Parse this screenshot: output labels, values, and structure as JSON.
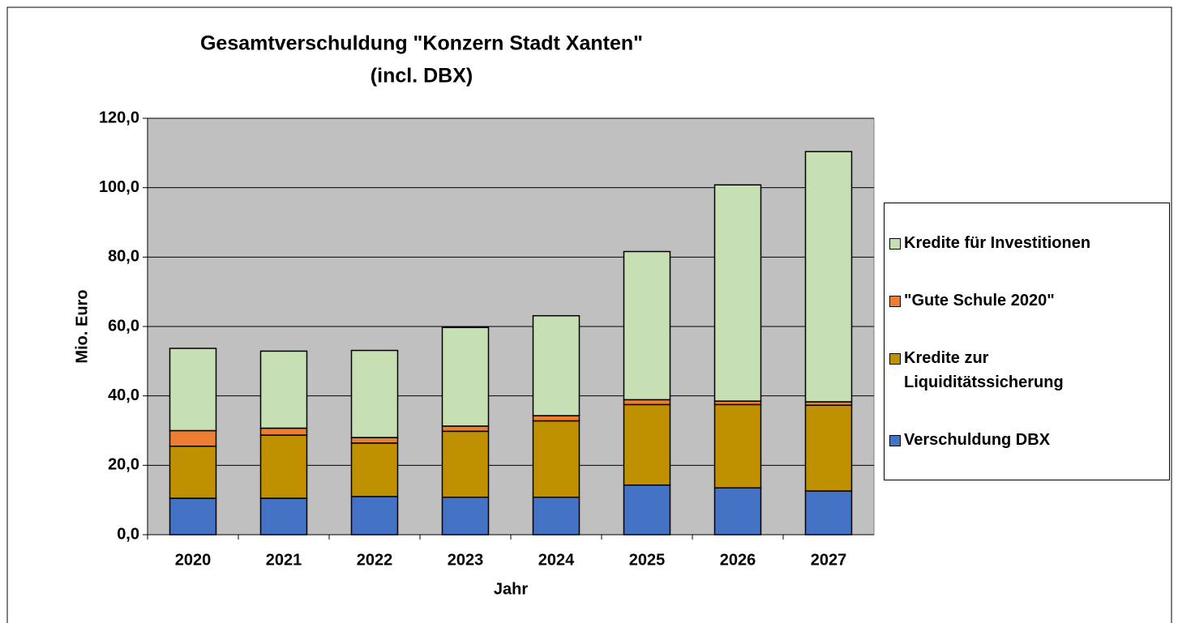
{
  "chart_data": {
    "type": "stacked_bar",
    "title": [
      "Gesamtverschuldung \"Konzern Stadt Xanten\"",
      "(incl. DBX)"
    ],
    "x_label": "Jahr",
    "y_label": "Mio. Euro",
    "categories": [
      "2020",
      "2021",
      "2022",
      "2023",
      "2024",
      "2025",
      "2026",
      "2027"
    ],
    "series": [
      {
        "name": "Verschuldung DBX",
        "color": "#4472c4",
        "values": [
          10.5,
          10.5,
          11.0,
          10.8,
          10.8,
          14.3,
          13.5,
          12.6
        ]
      },
      {
        "name": "Kredite zur Liquiditätssicherung",
        "color": "#bf9000",
        "values": [
          15.0,
          18.2,
          15.4,
          19.0,
          22.0,
          23.2,
          24.0,
          24.7
        ]
      },
      {
        "name": "\"Gute Schule 2020\"",
        "color": "#ed7d31",
        "values": [
          4.5,
          2.0,
          1.6,
          1.5,
          1.5,
          1.4,
          1.0,
          1.0
        ]
      },
      {
        "name": "Kredite für Investitionen",
        "color": "#c6e0b4",
        "values": [
          23.7,
          22.2,
          25.1,
          28.4,
          28.8,
          42.7,
          62.3,
          72.1
        ]
      }
    ],
    "ylim": [
      0,
      120
    ],
    "yticks": [
      {
        "value": 0,
        "label": "0,0"
      },
      {
        "value": 20,
        "label": "20,0"
      },
      {
        "value": 40,
        "label": "40,0"
      },
      {
        "value": 60,
        "label": "60,0"
      },
      {
        "value": 80,
        "label": "80,0"
      },
      {
        "value": 100,
        "label": "100,0"
      },
      {
        "value": 120,
        "label": "120,0"
      }
    ],
    "grid": true,
    "legend": "right"
  }
}
